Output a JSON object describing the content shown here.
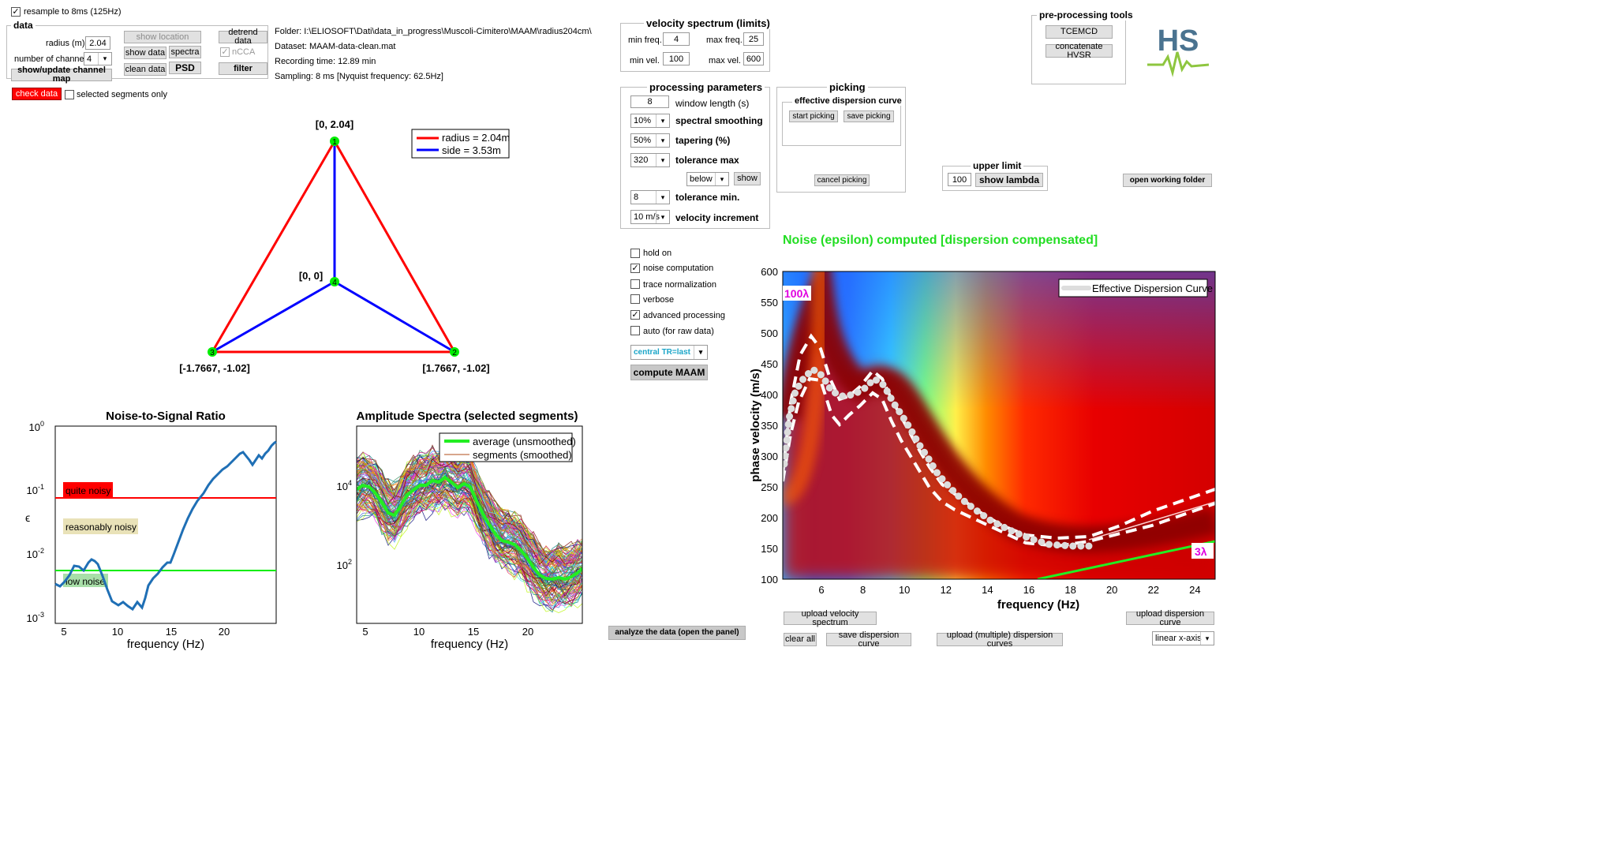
{
  "top": {
    "resample_label": "resample to 8ms (125Hz)",
    "check_data": "check data",
    "selected_only": "selected segments only"
  },
  "data_panel": {
    "title": "data",
    "radius_label": "radius (m):",
    "radius_value": "2.04",
    "channels_label": "number of channels:",
    "channels_value": "4",
    "show_location": "show location",
    "show_data": "show data",
    "spectra": "spectra",
    "clean_data": "clean data",
    "psd": "PSD",
    "detrend": "detrend data",
    "ncca": "nCCA",
    "filter": "filter",
    "channel_map": "show/update channel map"
  },
  "info": {
    "folder": "Folder: I:\\ELIOSOFT\\Dati\\data_in_progress\\Muscoli-Cimitero\\MAAM\\radius204cm\\",
    "dataset": "Dataset: MAAM-data-clean.mat",
    "recording": "Recording time: 12.89 min",
    "sampling": "Sampling: 8 ms  [Nyquist frequency: 62.5Hz]"
  },
  "velocity_spectrum": {
    "title": "velocity spectrum (limits)",
    "min_freq_label": "min freq.",
    "min_freq": "4",
    "max_freq_label": "max freq.",
    "max_freq": "25",
    "min_vel_label": "min vel.",
    "min_vel": "100",
    "max_vel_label": "max vel.",
    "max_vel": "600"
  },
  "processing": {
    "title": "processing parameters",
    "window_value": "8",
    "window_label": "window length (s)",
    "smoothing_value": "10%",
    "smoothing_label": "spectral smoothing",
    "tapering_value": "50%",
    "tapering_label": "tapering (%)",
    "tolmax_value": "320",
    "tolmax_label": "tolerance max",
    "below_value": "below",
    "show": "show",
    "tolmin_value": "8",
    "tolmin_label": "tolerance min.",
    "velinc_value": "10 m/s",
    "velinc_label": "velocity increment"
  },
  "picking": {
    "title": "picking",
    "sub_title": "effective dispersion curve",
    "start": "start picking",
    "save": "save picking",
    "cancel": "cancel picking"
  },
  "upper_limit": {
    "title": "upper limit",
    "value": "100",
    "show_lambda": "show lambda"
  },
  "preproc": {
    "title": "pre-processing tools",
    "tcemcd": "TCEMCD",
    "concat": "concatenate HVSR",
    "open_folder": "open working folder"
  },
  "logo": {
    "text": "HS"
  },
  "options": {
    "hold_on": "hold on",
    "noise": "noise computation",
    "trace_norm": "trace normalization",
    "verbose": "verbose",
    "advanced": "advanced processing",
    "auto": "auto (for raw data)",
    "central": "central TR=last",
    "compute": "compute MAAM",
    "analyze": "analyze the data (open the panel)"
  },
  "map": {
    "legend_radius": "radius = 2.04m",
    "legend_side": "side = 3.53m",
    "n1": "1",
    "n2": "2",
    "n3": "3",
    "n4": "4",
    "c1": "[0, 2.04]",
    "c2": "[1.7667, -1.02]",
    "c3": "[-1.7667, -1.02]",
    "c4": "[0, 0]"
  },
  "nsr": {
    "title": "Noise-to-Signal Ratio",
    "xlabel": "frequency (Hz)",
    "ylabel": "ϵ",
    "quite": "quite noisy",
    "reasonably": "reasonably noisy",
    "low": "low noise",
    "yt0": "10",
    "ye0": "0",
    "yt1": "10",
    "ye1": "-1",
    "yt2": "10",
    "ye2": "-2",
    "yt3": "10",
    "ye3": "-3",
    "x5": "5",
    "x10": "10",
    "x15": "15",
    "x20": "20"
  },
  "amp": {
    "title": "Amplitude Spectra (selected segments)",
    "xlabel": "frequency (Hz)",
    "legend_avg": "average (unsmoothed)",
    "legend_seg": "segments (smoothed)",
    "yt4": "10",
    "ye4": "4",
    "yt2": "10",
    "ye2": "2",
    "x5": "5",
    "x10": "10",
    "x15": "15",
    "x20": "20"
  },
  "disp": {
    "title": "Noise (epsilon) computed [dispersion compensated]",
    "xlabel": "frequency (Hz)",
    "ylabel": "phase velocity (m/s)",
    "legend": "Effective Dispersion Curve",
    "lambda100": "100λ",
    "lambda3": "3λ",
    "yticks": [
      "600",
      "550",
      "500",
      "450",
      "400",
      "350",
      "300",
      "250",
      "200",
      "150",
      "100"
    ],
    "xticks": [
      "6",
      "8",
      "10",
      "12",
      "14",
      "16",
      "18",
      "20",
      "22",
      "24"
    ]
  },
  "bottom": {
    "upload_vel": "upload velocity spectrum",
    "clear_all": "clear all",
    "save_disp": "save dispersion curve",
    "upload_multi": "upload (multiple) dispersion curves",
    "upload_disp": "upload dispersion curve",
    "linear_x": "linear x-axis"
  },
  "colors": {
    "red": "#ff0000",
    "blue": "#0000ff",
    "green": "#00ff00",
    "title_green": "#22dd22",
    "lambda_magenta": "#e000e0"
  }
}
